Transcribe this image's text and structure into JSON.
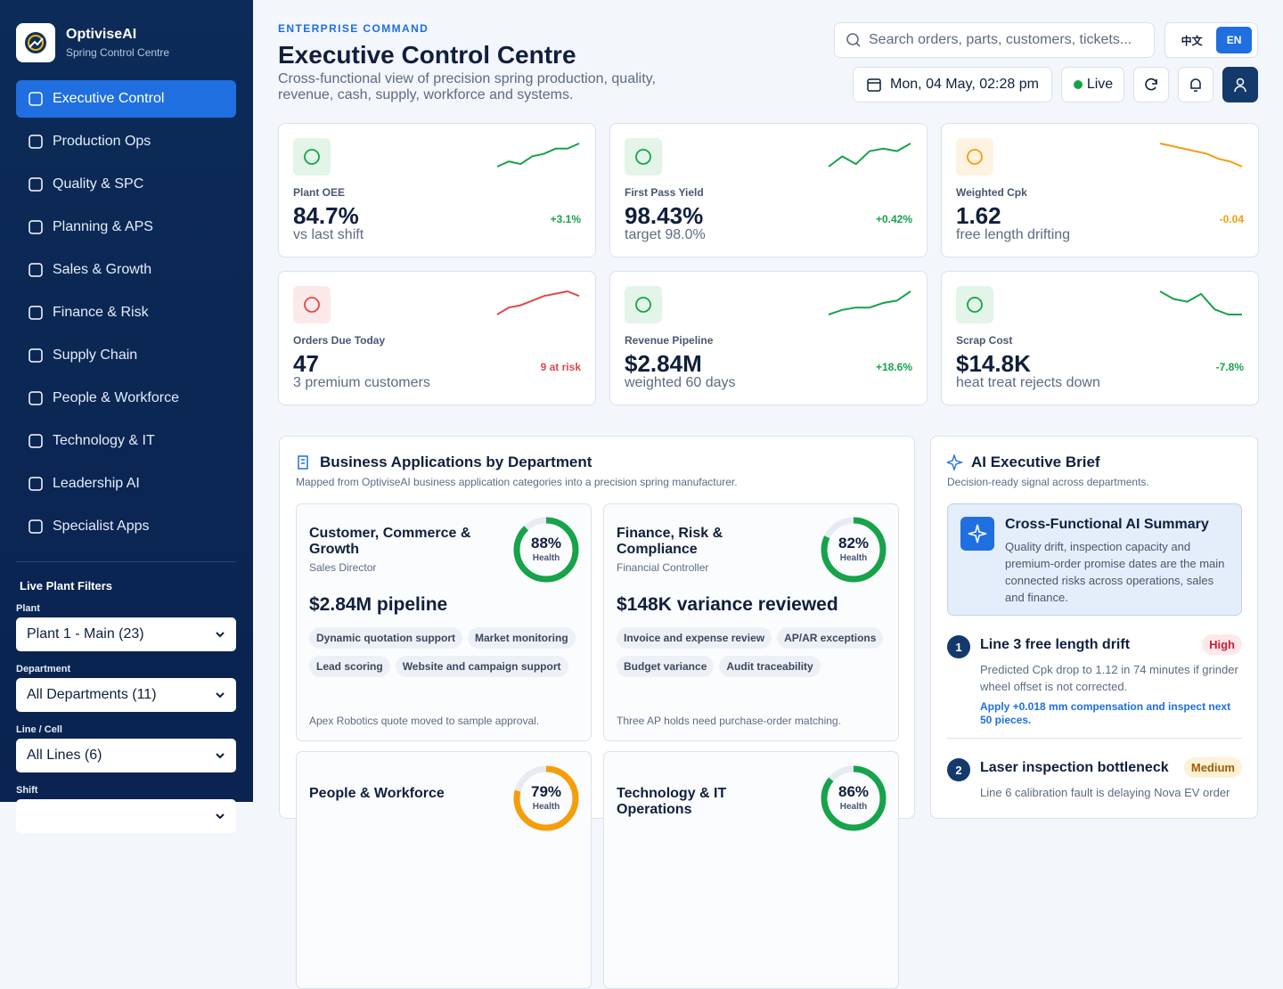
{
  "sidebar": {
    "brand": "OptiviseAI",
    "subtitle": "Spring Control Centre",
    "nav": [
      "Executive Control",
      "Production Ops",
      "Quality & SPC",
      "Planning & APS",
      "Sales & Growth",
      "Finance & Risk",
      "Supply Chain",
      "People & Workforce",
      "Technology & IT",
      "Leadership AI",
      "Specialist Apps"
    ],
    "filters_title": "Live Plant Filters",
    "filters": [
      {
        "label": "Plant",
        "value": "Plant 1 - Main (23)"
      },
      {
        "label": "Department",
        "value": "All Departments (11)"
      },
      {
        "label": "Line / Cell",
        "value": "All Lines (6)"
      },
      {
        "label": "Shift"
      }
    ]
  },
  "header": {
    "eyebrow": "ENTERPRISE COMMAND",
    "title": "Executive Control Centre",
    "subtitle": "Cross-functional view of precision spring production, quality, revenue, cash, supply, workforce and systems.",
    "search_placeholder": "Search orders, parts, customers, tickets...",
    "languages": [
      "中文",
      "EN"
    ],
    "date": "Mon, 04 May, 02:28 pm",
    "status": "Live"
  },
  "kpis": [
    {
      "label": "Plant OEE",
      "value": "84.7%",
      "note": "vs last shift",
      "delta": "+3.1%",
      "color": "#16a34a",
      "trend": [
        3,
        5,
        4,
        7,
        8,
        10,
        10,
        12
      ]
    },
    {
      "label": "First Pass Yield",
      "value": "98.43%",
      "note": "target 98.0%",
      "delta": "+0.42%",
      "color": "#16a34a",
      "trend": [
        2,
        6,
        3,
        8,
        9,
        8,
        11
      ]
    },
    {
      "label": "Weighted Cpk",
      "value": "1.62",
      "note": "free length drifting",
      "delta": "-0.04",
      "color": "#f59e0b",
      "trend": [
        12,
        11,
        10,
        9,
        8,
        6,
        5,
        3
      ]
    },
    {
      "label": "Orders Due Today",
      "value": "47",
      "note": "3 premium customers",
      "delta": "9 at risk",
      "color": "#e04848",
      "trend": [
        2,
        5,
        6,
        8,
        10,
        11,
        12,
        10
      ]
    },
    {
      "label": "Revenue Pipeline",
      "value": "$2.84M",
      "note": "weighted 60 days",
      "delta": "+18.6%",
      "color": "#16a34a",
      "trend": [
        2,
        4,
        5,
        5,
        7,
        8,
        12
      ]
    },
    {
      "label": "Scrap Cost",
      "value": "$14.8K",
      "note": "heat treat rejects down",
      "delta": "-7.8%",
      "color": "#16a34a",
      "trend": [
        12,
        9,
        8,
        11,
        5,
        3,
        3
      ]
    }
  ],
  "apps": {
    "title": "Business Applications by Department",
    "subtitle": "Mapped from OptiviseAI business application categories into a precision spring manufacturer.",
    "health_label": "Health",
    "cards": [
      {
        "title": "Customer, Commerce & Growth",
        "role": "Sales Director",
        "health": {
          "value": 88,
          "label": "88%"
        },
        "color": "#16a34a",
        "headline": "$2.84M pipeline",
        "tags": [
          "Dynamic quotation support",
          "Market monitoring",
          "Lead scoring",
          "Website and campaign support"
        ],
        "note": "Apex Robotics quote moved to sample approval."
      },
      {
        "title": "Finance, Risk & Compliance",
        "role": "Financial Controller",
        "health": {
          "value": 82,
          "label": "82%"
        },
        "color": "#16a34a",
        "headline": "$148K variance reviewed",
        "tags": [
          "Invoice and expense review",
          "AP/AR exceptions",
          "Budget variance",
          "Audit traceability"
        ],
        "note": "Three AP holds need purchase-order matching."
      },
      {
        "title": "People & Workforce",
        "health": {
          "value": 79,
          "label": "79%"
        },
        "color": "#f59e0b"
      },
      {
        "title": "Technology & IT Operations",
        "health": {
          "value": 86,
          "label": "86%"
        },
        "color": "#16a34a"
      }
    ]
  },
  "brief": {
    "title": "AI Executive Brief",
    "subtitle": "Decision-ready signal across departments.",
    "summary_title": "Cross-Functional AI Summary",
    "summary": "Quality drift, inspection capacity and premium-order promise dates are the main connected risks across operations, sales and finance.",
    "items": [
      {
        "num": 1,
        "title": "Line 3 free length drift",
        "badge": "High",
        "text": "Predicted Cpk drop to 1.12 in 74 minutes if grinder wheel offset is not corrected.",
        "action": "Apply +0.018 mm compensation and inspect next 50 pieces."
      },
      {
        "num": 2,
        "title": "Laser inspection bottleneck",
        "badge": "Medium",
        "text": "Line 6 calibration fault is delaying Nova EV order"
      }
    ]
  }
}
